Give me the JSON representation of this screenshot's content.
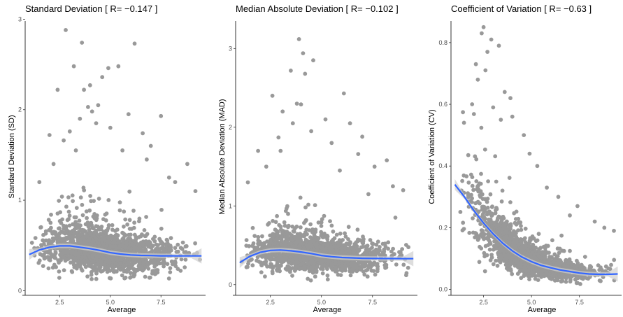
{
  "colors": {
    "points": "#999999",
    "smooth": "#3366ff",
    "band": "#cfcfcf",
    "axis": "#000000"
  },
  "chart_data": [
    {
      "type": "scatter",
      "title": "Standard Deviation [ R= −0.147 ]",
      "xlabel": "Average",
      "ylabel": "Standard Deviation (SD)",
      "xlim": [
        0.8,
        9.7
      ],
      "ylim": [
        -0.02,
        2.98
      ],
      "xticks": [
        2.5,
        5.0,
        7.5
      ],
      "xtick_labels": [
        "2.5",
        "5.0",
        "7.5"
      ],
      "yticks": [
        0,
        1,
        2,
        3
      ],
      "ytick_labels": [
        "0",
        "1",
        "2",
        "3"
      ],
      "grid": false,
      "legend": "none",
      "smooth": {
        "x": [
          1.0,
          1.5,
          2.0,
          2.5,
          3.0,
          3.5,
          4.0,
          4.5,
          5.0,
          5.5,
          6.0,
          6.5,
          7.0,
          7.5,
          8.0,
          8.5,
          9.0,
          9.5
        ],
        "y": [
          0.4,
          0.45,
          0.48,
          0.495,
          0.495,
          0.48,
          0.465,
          0.445,
          0.42,
          0.405,
          0.395,
          0.39,
          0.388,
          0.385,
          0.385,
          0.384,
          0.384,
          0.384
        ]
      },
      "points": [
        [
          2.8,
          2.88
        ],
        [
          3.6,
          2.74
        ],
        [
          4.0,
          2.27
        ],
        [
          4.9,
          2.46
        ],
        [
          5.4,
          2.48
        ],
        [
          6.2,
          2.73
        ],
        [
          3.2,
          2.48
        ],
        [
          4.6,
          2.36
        ],
        [
          3.7,
          2.22
        ],
        [
          2.4,
          2.22
        ],
        [
          3.9,
          2.03
        ],
        [
          4.1,
          1.98
        ],
        [
          5.9,
          1.95
        ],
        [
          7.5,
          1.93
        ],
        [
          4.4,
          2.05
        ],
        [
          3.0,
          1.76
        ],
        [
          5.0,
          1.8
        ],
        [
          2.0,
          1.72
        ],
        [
          6.6,
          1.74
        ],
        [
          2.7,
          1.66
        ],
        [
          4.3,
          1.85
        ],
        [
          7.0,
          1.6
        ],
        [
          3.5,
          1.9
        ],
        [
          5.6,
          1.55
        ],
        [
          8.8,
          1.4
        ],
        [
          8.2,
          1.2
        ],
        [
          7.9,
          1.25
        ],
        [
          2.2,
          1.4
        ],
        [
          1.5,
          1.2
        ],
        [
          9.2,
          1.1
        ],
        [
          6.8,
          1.45
        ],
        [
          3.3,
          1.55
        ]
      ],
      "cloud": {
        "n": 1600,
        "xmin": 1.0,
        "xmax": 9.5,
        "floor": 0.12,
        "spread": 0.55
      }
    },
    {
      "type": "scatter",
      "title": "Median Absolute Deviation [ R= −0.102 ]",
      "xlabel": "Average",
      "ylabel": "Median Absolute Deviation (MAD)",
      "xlim": [
        0.8,
        9.7
      ],
      "ylim": [
        -0.1,
        3.35
      ],
      "xticks": [
        2.5,
        5.0,
        7.5
      ],
      "xtick_labels": [
        "2.5",
        "5.0",
        "7.5"
      ],
      "yticks": [
        0,
        1,
        2,
        3
      ],
      "ytick_labels": [
        "0",
        "1",
        "2",
        "3"
      ],
      "grid": false,
      "legend": "none",
      "smooth": {
        "x": [
          1.0,
          1.5,
          2.0,
          2.5,
          3.0,
          3.5,
          4.0,
          4.5,
          5.0,
          5.5,
          6.0,
          6.5,
          7.0,
          7.5,
          8.0,
          8.5,
          9.0,
          9.5
        ],
        "y": [
          0.28,
          0.36,
          0.41,
          0.435,
          0.44,
          0.43,
          0.415,
          0.395,
          0.37,
          0.355,
          0.345,
          0.34,
          0.335,
          0.333,
          0.332,
          0.331,
          0.33,
          0.33
        ]
      },
      "points": [
        [
          3.9,
          3.12
        ],
        [
          4.1,
          2.94
        ],
        [
          4.6,
          2.85
        ],
        [
          3.5,
          2.72
        ],
        [
          4.2,
          2.68
        ],
        [
          6.1,
          2.43
        ],
        [
          2.6,
          2.4
        ],
        [
          3.8,
          2.3
        ],
        [
          4.0,
          2.29
        ],
        [
          3.1,
          2.2
        ],
        [
          5.2,
          2.1
        ],
        [
          6.4,
          2.05
        ],
        [
          3.6,
          2.05
        ],
        [
          7.0,
          1.88
        ],
        [
          2.9,
          1.87
        ],
        [
          4.5,
          1.95
        ],
        [
          5.5,
          1.8
        ],
        [
          1.9,
          1.7
        ],
        [
          6.8,
          1.66
        ],
        [
          8.2,
          1.58
        ],
        [
          3.0,
          1.7
        ],
        [
          2.3,
          1.5
        ],
        [
          7.6,
          1.5
        ],
        [
          1.4,
          1.3
        ],
        [
          9.0,
          1.2
        ],
        [
          8.5,
          1.25
        ],
        [
          5.9,
          1.45
        ],
        [
          7.3,
          1.15
        ]
      ],
      "cloud": {
        "n": 1600,
        "xmin": 1.0,
        "xmax": 9.5,
        "floor": 0.0,
        "spread": 0.6
      }
    },
    {
      "type": "scatter",
      "title": "Coefficient of Variation [ R= −0.63 ]",
      "xlabel": "Average",
      "ylabel": "Coefficient of Variation (CV)",
      "xlim": [
        0.8,
        9.7
      ],
      "ylim": [
        -0.01,
        0.87
      ],
      "xticks": [
        2.5,
        5.0,
        7.5
      ],
      "xtick_labels": [
        "2.5",
        "5.0",
        "7.5"
      ],
      "yticks": [
        0.0,
        0.2,
        0.4,
        0.6,
        0.8
      ],
      "ytick_labels": [
        "0.0",
        "0.2",
        "0.4",
        "0.6",
        "0.8"
      ],
      "grid": false,
      "legend": "none",
      "smooth": {
        "x": [
          1.0,
          1.5,
          2.0,
          2.5,
          3.0,
          3.5,
          4.0,
          4.5,
          5.0,
          5.5,
          6.0,
          6.5,
          7.0,
          7.5,
          8.0,
          8.5,
          9.0,
          9.5
        ],
        "y": [
          0.34,
          0.3,
          0.255,
          0.215,
          0.18,
          0.15,
          0.125,
          0.105,
          0.09,
          0.078,
          0.07,
          0.063,
          0.058,
          0.053,
          0.05,
          0.049,
          0.049,
          0.05
        ]
      },
      "points": [
        [
          2.5,
          0.85
        ],
        [
          2.4,
          0.83
        ],
        [
          2.9,
          0.81
        ],
        [
          3.3,
          0.79
        ],
        [
          2.7,
          0.77
        ],
        [
          2.1,
          0.73
        ],
        [
          2.6,
          0.71
        ],
        [
          3.6,
          0.64
        ],
        [
          3.9,
          0.62
        ],
        [
          2.2,
          0.68
        ],
        [
          3.0,
          0.59
        ],
        [
          1.9,
          0.6
        ],
        [
          4.0,
          0.56
        ],
        [
          3.4,
          0.55
        ],
        [
          4.6,
          0.5
        ],
        [
          5.3,
          0.4
        ],
        [
          4.9,
          0.44
        ],
        [
          6.4,
          0.3
        ],
        [
          7.4,
          0.27
        ],
        [
          8.3,
          0.22
        ],
        [
          8.8,
          0.2
        ],
        [
          9.3,
          0.19
        ],
        [
          5.8,
          0.33
        ],
        [
          7.0,
          0.24
        ]
      ],
      "cloud": {
        "n": 1600,
        "xmin": 1.0,
        "xmax": 9.5,
        "floor": 0.015,
        "spread": 0.55,
        "decay": true
      }
    }
  ]
}
